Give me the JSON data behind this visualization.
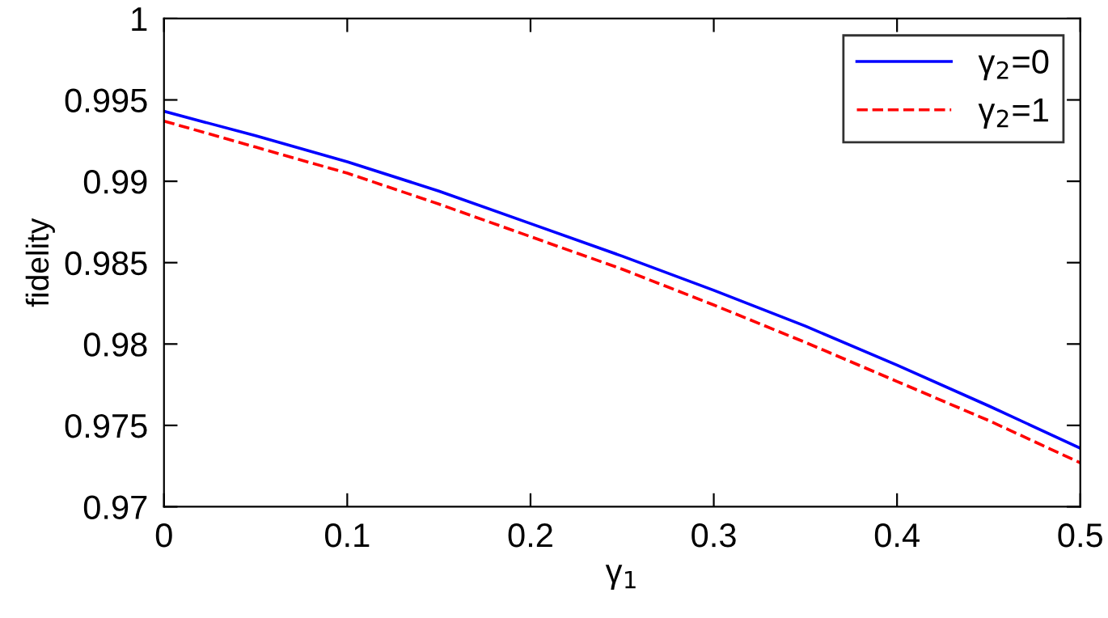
{
  "chart_data": {
    "type": "line",
    "xlabel": "γ$_{1}$",
    "ylabel": "fidelity",
    "x": [
      0,
      0.05,
      0.1,
      0.15,
      0.2,
      0.25,
      0.3,
      0.35,
      0.4,
      0.45,
      0.5
    ],
    "series": [
      {
        "name": "γ$_{2}$=0",
        "color": "#0000ff",
        "line_style": "solid",
        "values": [
          0.9943,
          0.9928,
          0.9912,
          0.9894,
          0.9874,
          0.9854,
          0.9833,
          0.9811,
          0.9787,
          0.9762,
          0.9736
        ]
      },
      {
        "name": "γ$_{2}$=1",
        "color": "#ff0000",
        "line_style": "dashed",
        "values": [
          0.9937,
          0.9921,
          0.9905,
          0.9886,
          0.9866,
          0.9846,
          0.9824,
          0.9801,
          0.9777,
          0.9753,
          0.9727
        ]
      }
    ],
    "xlim": [
      0,
      0.5
    ],
    "ylim": [
      0.97,
      1
    ],
    "xticks": [
      {
        "value": 0,
        "label": "0"
      },
      0.1,
      0.2,
      0.3,
      0.4,
      0.5
    ],
    "yticks": [
      0.97,
      0.975,
      0.98,
      0.985,
      0.99,
      0.995,
      {
        "value": 1,
        "label": "1"
      }
    ],
    "grid": false,
    "legend": "top right",
    "marker": "none"
  }
}
